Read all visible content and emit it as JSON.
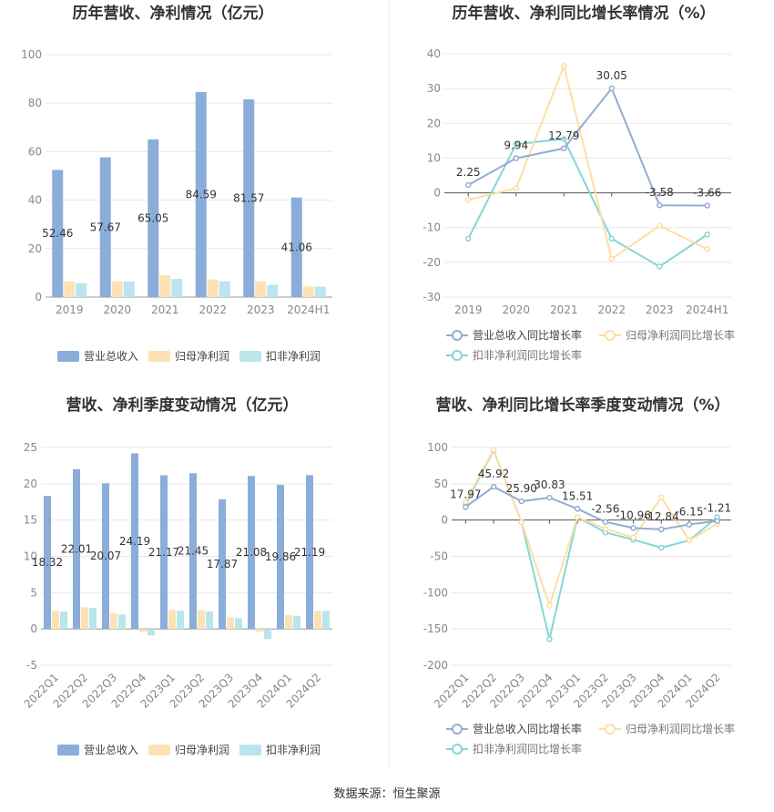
{
  "colors": {
    "revenue": "#8badd9",
    "net_profit": "#fde2b5",
    "deducted_profit": "#b9e6ea",
    "revenue_line": "#94acd3",
    "net_line": "#fddfa2",
    "deducted_line": "#84d6d6",
    "title": "#333333",
    "axis_text": "#888888",
    "grid": "#e8e8e8",
    "label": "#333333"
  },
  "source": "数据来源：恒生聚源",
  "chart_data": [
    {
      "id": "annual-amounts",
      "type": "bar",
      "title": "历年营收、净利情况（亿元）",
      "categories": [
        "2019",
        "2020",
        "2021",
        "2022",
        "2023",
        "2024H1"
      ],
      "ylim": [
        0,
        100
      ],
      "yticks": [
        0,
        20,
        40,
        60,
        80,
        100
      ],
      "grid": true,
      "legend_position": "bottom",
      "series": [
        {
          "name": "营业总收入",
          "values": [
            52.46,
            57.67,
            65.05,
            84.59,
            81.57,
            41.06
          ],
          "labels": [
            "52.46",
            "57.67",
            "65.05",
            "84.59",
            "81.57",
            "41.06"
          ]
        },
        {
          "name": "归母净利润",
          "values": [
            6.4,
            6.5,
            9.0,
            7.3,
            6.5,
            4.4
          ]
        },
        {
          "name": "扣非净利润",
          "values": [
            5.7,
            6.4,
            7.5,
            6.5,
            5.1,
            4.3
          ]
        }
      ]
    },
    {
      "id": "annual-growth",
      "type": "line",
      "title": "历年营收、净利同比增长率情况（%）",
      "categories": [
        "2019",
        "2020",
        "2021",
        "2022",
        "2023",
        "2024H1"
      ],
      "ylim": [
        -30,
        40
      ],
      "yticks": [
        -30,
        -20,
        -10,
        0,
        10,
        20,
        30,
        40
      ],
      "grid": true,
      "legend_position": "bottom",
      "series": [
        {
          "name": "营业总收入同比增长率",
          "values": [
            2.25,
            9.94,
            12.79,
            30.05,
            -3.58,
            -3.66
          ],
          "labels": [
            "2.25",
            "9.94",
            "12.79",
            "30.05",
            "-3.58",
            "-3.66"
          ]
        },
        {
          "name": "归母净利润同比增长率",
          "values": [
            -2,
            1.3,
            36.5,
            -19,
            -9.5,
            -16.2
          ]
        },
        {
          "name": "扣非净利润同比增长率",
          "values": [
            -13.2,
            14,
            15.5,
            -13.2,
            -21.2,
            -12
          ]
        }
      ]
    },
    {
      "id": "quarterly-amounts",
      "type": "bar",
      "title": "营收、净利季度变动情况（亿元）",
      "categories": [
        "2022Q1",
        "2022Q2",
        "2022Q3",
        "2022Q4",
        "2023Q1",
        "2023Q2",
        "2023Q3",
        "2023Q4",
        "2024Q1",
        "2024Q2"
      ],
      "ylim": [
        -5,
        25
      ],
      "yticks": [
        -5,
        0,
        5,
        10,
        15,
        20,
        25
      ],
      "grid": true,
      "legend_position": "bottom",
      "series": [
        {
          "name": "营业总收入",
          "values": [
            18.32,
            22.01,
            20.07,
            24.19,
            21.17,
            21.45,
            17.87,
            21.08,
            19.86,
            21.19
          ],
          "labels": [
            "18.32",
            "22.01",
            "20.07",
            "24.19",
            "21.17",
            "21.45",
            "17.87",
            "21.08",
            "19.86",
            "21.19"
          ]
        },
        {
          "name": "归母净利润",
          "values": [
            2.5,
            3.0,
            2.2,
            -0.4,
            2.6,
            2.6,
            1.6,
            -0.4,
            1.9,
            2.5
          ]
        },
        {
          "name": "扣非净利润",
          "values": [
            2.4,
            2.9,
            2.0,
            -0.9,
            2.5,
            2.4,
            1.5,
            -1.4,
            1.8,
            2.5
          ]
        }
      ]
    },
    {
      "id": "quarterly-growth",
      "type": "line",
      "title": "营收、净利同比增长率季度变动情况（%）",
      "categories": [
        "2022Q1",
        "2022Q2",
        "2022Q3",
        "2022Q4",
        "2023Q1",
        "2023Q2",
        "2023Q3",
        "2023Q4",
        "2024Q1",
        "2024Q2"
      ],
      "ylim": [
        -200,
        100
      ],
      "yticks": [
        -200,
        -150,
        -100,
        -50,
        0,
        50,
        100
      ],
      "grid": true,
      "legend_position": "bottom",
      "series": [
        {
          "name": "营业总收入同比增长率",
          "values": [
            17.97,
            45.92,
            25.9,
            30.83,
            15.51,
            -2.56,
            -10.96,
            -12.84,
            -6.15,
            -1.21
          ],
          "labels": [
            "17.97",
            "45.92",
            "25.90",
            "30.83",
            "15.51",
            "-2.56",
            "-10.96",
            "-12.84",
            "-6.15",
            "-1.21"
          ]
        },
        {
          "name": "归母净利润同比增长率",
          "values": [
            25,
            97,
            -3,
            -118,
            4,
            -12,
            -24,
            31,
            -28,
            -5
          ]
        },
        {
          "name": "扣非净利润同比增长率",
          "values": [
            22,
            96,
            -3,
            -164,
            4,
            -17,
            -27,
            -38,
            -28,
            4
          ]
        }
      ]
    }
  ]
}
